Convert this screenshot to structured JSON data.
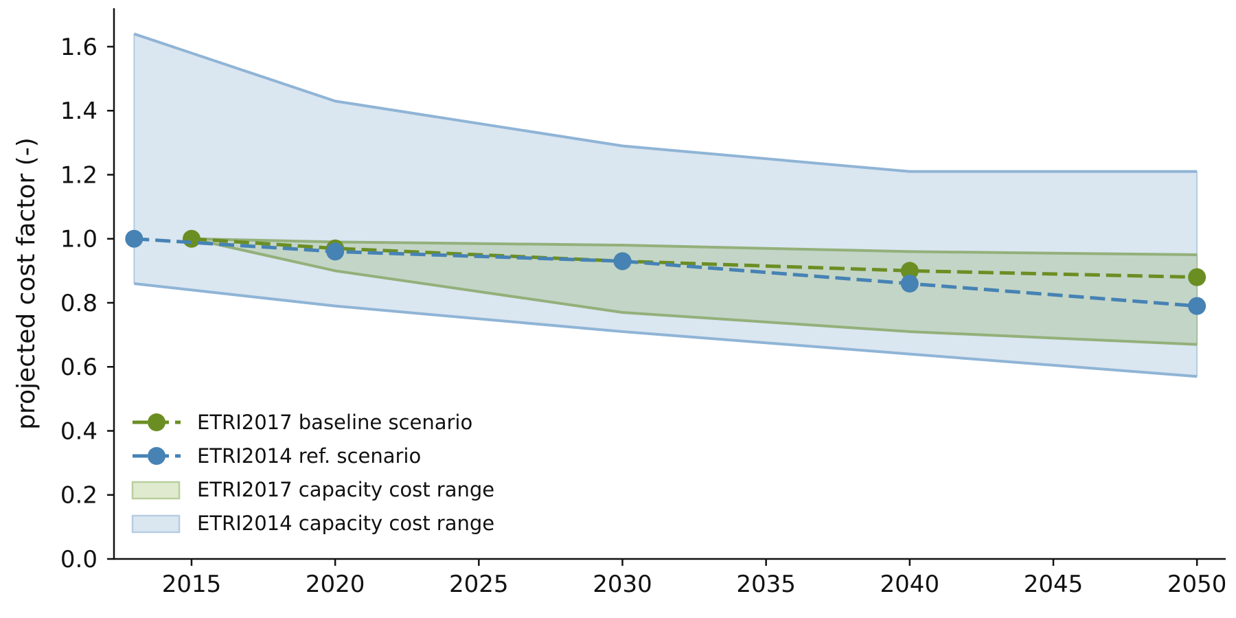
{
  "chart_data": {
    "type": "line",
    "title": "",
    "xlabel": "",
    "ylabel": "projected cost factor (-)",
    "xlim": [
      2012.3,
      2051.0
    ],
    "ylim": [
      0.0,
      1.72
    ],
    "xticks": [
      2015,
      2020,
      2025,
      2030,
      2035,
      2040,
      2045,
      2050
    ],
    "yticks": [
      0.0,
      0.2,
      0.4,
      0.6,
      0.8,
      1.0,
      1.2,
      1.4,
      1.6
    ],
    "ytick_labels": [
      "0.0",
      "0.2",
      "0.4",
      "0.6",
      "0.8",
      "1.0",
      "1.2",
      "1.4",
      "1.6"
    ],
    "grid": false,
    "legend_position": "lower-left",
    "series": [
      {
        "name": "ETRI2017 baseline scenario",
        "style": "dashed-markers",
        "color": "#6b8e23",
        "x": [
          2015,
          2020,
          2030,
          2040,
          2050
        ],
        "values": [
          1.0,
          0.97,
          0.93,
          0.9,
          0.88
        ]
      },
      {
        "name": "ETRI2014 ref. scenario",
        "style": "dashed-markers",
        "color": "#4682b4",
        "x": [
          2013,
          2020,
          2030,
          2040,
          2050
        ],
        "values": [
          1.0,
          0.96,
          0.93,
          0.86,
          0.79
        ]
      }
    ],
    "ranges": [
      {
        "name": "ETRI2014 capacity cost range",
        "fill": "#dae6f0",
        "edge": "#8fb4d6",
        "x": [
          2013,
          2020,
          2030,
          2040,
          2050
        ],
        "lower": [
          0.86,
          0.79,
          0.71,
          0.64,
          0.57
        ],
        "upper": [
          1.64,
          1.43,
          1.29,
          1.21,
          1.21
        ]
      },
      {
        "name": "ETRI2017 capacity cost range",
        "fill": "#c3d5c7",
        "edge": "#93b07a",
        "x": [
          2015,
          2020,
          2030,
          2040,
          2050
        ],
        "lower": [
          1.0,
          0.9,
          0.77,
          0.71,
          0.67
        ],
        "upper": [
          1.0,
          0.99,
          0.98,
          0.96,
          0.95
        ]
      }
    ],
    "legend": [
      {
        "label": "ETRI2017 baseline scenario",
        "kind": "line",
        "color": "#6b8e23"
      },
      {
        "label": "ETRI2014 ref. scenario",
        "kind": "line",
        "color": "#4682b4"
      },
      {
        "label": "ETRI2017 capacity cost range",
        "kind": "patch",
        "fill": "#e0eacf",
        "edge": "#b9cf9d"
      },
      {
        "label": "ETRI2014 capacity cost range",
        "kind": "patch",
        "fill": "#dae6f0",
        "edge": "#b6cde2"
      }
    ]
  }
}
